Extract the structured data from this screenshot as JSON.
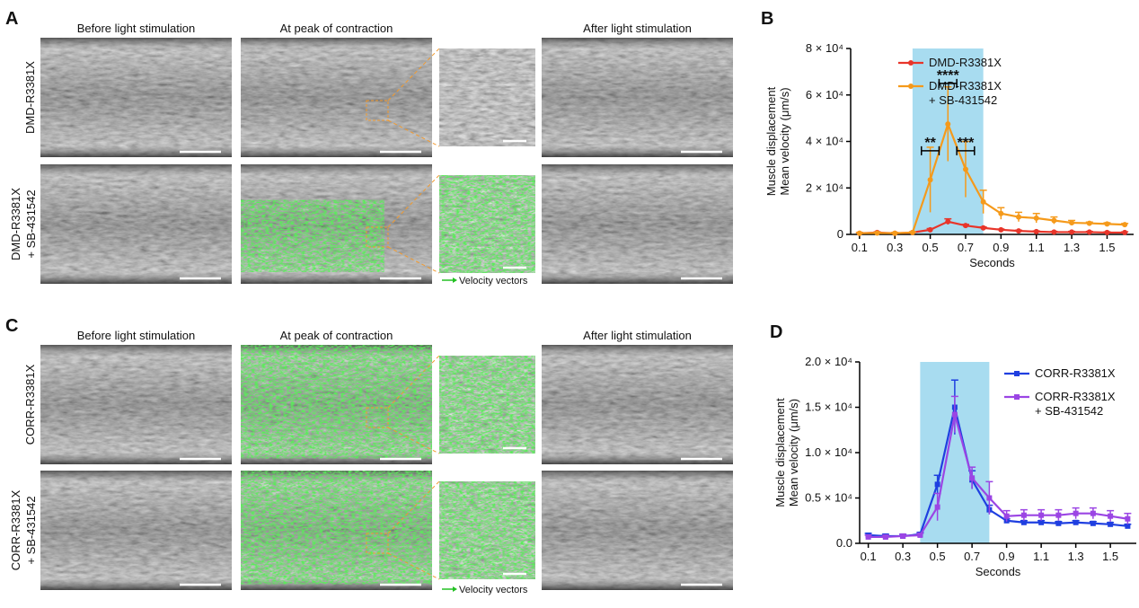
{
  "panels": [
    {
      "letter": "A",
      "columns": [
        "Before light stimulation",
        "At peak of contraction",
        "After light stimulation"
      ],
      "rows": [
        [
          "DMD-R3381X"
        ],
        [
          "DMD-R3381X",
          "+ SB-431542"
        ]
      ],
      "legend": "Velocity vectors"
    },
    {
      "letter": "C",
      "columns": [
        "Before light stimulation",
        "At peak of contraction",
        "After light stimulation"
      ],
      "rows": [
        [
          "CORR-R3381X"
        ],
        [
          "CORR-R3381X",
          "+ SB-431542"
        ]
      ],
      "legend": "Velocity vectors"
    }
  ],
  "chart_data": [
    {
      "type": "line",
      "panel_label": "B",
      "ylabel": [
        "Muscle displacement",
        "Mean velocity (μm/s)"
      ],
      "xlabel": "Seconds",
      "x": [
        0.1,
        0.2,
        0.3,
        0.4,
        0.5,
        0.6,
        0.7,
        0.8,
        0.9,
        1.0,
        1.1,
        1.2,
        1.3,
        1.4,
        1.5,
        1.6
      ],
      "xlim": [
        0.05,
        1.65
      ],
      "xticks": [
        0.1,
        0.3,
        0.5,
        0.7,
        0.9,
        1.1,
        1.3,
        1.5
      ],
      "ylim": [
        0,
        80000
      ],
      "yticks": [
        0,
        {
          "value": 20000,
          "label": "2 × 10⁴"
        },
        {
          "value": 40000,
          "label": "4 × 10⁴"
        },
        {
          "value": 60000,
          "label": "6 × 10⁴"
        },
        {
          "value": 80000,
          "label": "8 × 10⁴"
        }
      ],
      "shade": [
        0.4,
        0.8
      ],
      "shade_color": "#a8dcf0",
      "marker": "circle",
      "series": [
        {
          "name": "DMD-R3381X",
          "color": "#e8352a",
          "values": [
            500,
            800,
            500,
            800,
            2000,
            5500,
            3800,
            2800,
            2000,
            1500,
            1200,
            1000,
            1000,
            1000,
            800,
            800
          ],
          "errors": [
            300,
            300,
            300,
            300,
            500,
            1200,
            500,
            400,
            300,
            300,
            300,
            300,
            300,
            300,
            300,
            300
          ]
        },
        {
          "name": "DMD-R3381X\n+ SB-431542",
          "color": "#f59a1b",
          "values": [
            500,
            600,
            500,
            800,
            23500,
            47500,
            28000,
            14000,
            9000,
            7500,
            7000,
            6000,
            5000,
            4800,
            4500,
            4200
          ],
          "errors": [
            300,
            300,
            300,
            300,
            14000,
            16000,
            12000,
            5000,
            2500,
            2000,
            2000,
            1500,
            1000,
            500,
            500,
            500
          ]
        }
      ],
      "annotations": [
        {
          "text": "**",
          "x": [
            0.45,
            0.55
          ],
          "y": 36000
        },
        {
          "text": "****",
          "x": [
            0.55,
            0.65
          ],
          "y": 65000
        },
        {
          "text": "***",
          "x": [
            0.65,
            0.75
          ],
          "y": 36000
        }
      ]
    },
    {
      "type": "line",
      "panel_label": "D",
      "ylabel": [
        "Muscle displacement",
        "Mean velocity (μm/s)"
      ],
      "xlabel": "Seconds",
      "x": [
        0.1,
        0.2,
        0.3,
        0.4,
        0.5,
        0.6,
        0.7,
        0.8,
        0.9,
        1.0,
        1.1,
        1.2,
        1.3,
        1.4,
        1.5,
        1.6
      ],
      "xlim": [
        0.05,
        1.65
      ],
      "xticks": [
        0.1,
        0.3,
        0.5,
        0.7,
        0.9,
        1.1,
        1.3,
        1.5
      ],
      "ylim": [
        0,
        20000
      ],
      "yticks": [
        {
          "value": 0,
          "label": "0.0"
        },
        {
          "value": 5000,
          "label": "0.5 × 10⁴"
        },
        {
          "value": 10000,
          "label": "1.0 × 10⁴"
        },
        {
          "value": 15000,
          "label": "1.5 × 10⁴"
        },
        {
          "value": 20000,
          "label": "2.0 × 10⁴"
        }
      ],
      "shade": [
        0.4,
        0.8
      ],
      "shade_color": "#a8dcf0",
      "marker": "square",
      "series": [
        {
          "name": "CORR-R3381X",
          "color": "#1f3fe0",
          "values": [
            900,
            800,
            800,
            1000,
            6500,
            15000,
            7000,
            3700,
            2500,
            2300,
            2300,
            2200,
            2300,
            2200,
            2100,
            1900
          ],
          "errors": [
            200,
            200,
            200,
            200,
            1000,
            3000,
            1000,
            500,
            200,
            200,
            200,
            200,
            200,
            200,
            200,
            200
          ]
        },
        {
          "name": "CORR-R3381X\n+ SB-431542",
          "color": "#9b45e4",
          "values": [
            700,
            700,
            800,
            900,
            4000,
            14200,
            7200,
            5000,
            3000,
            3100,
            3100,
            3100,
            3300,
            3300,
            3000,
            2700
          ],
          "errors": [
            200,
            200,
            200,
            200,
            1500,
            2000,
            1200,
            1800,
            600,
            600,
            600,
            600,
            600,
            600,
            600,
            600
          ]
        }
      ],
      "annotations": []
    }
  ]
}
